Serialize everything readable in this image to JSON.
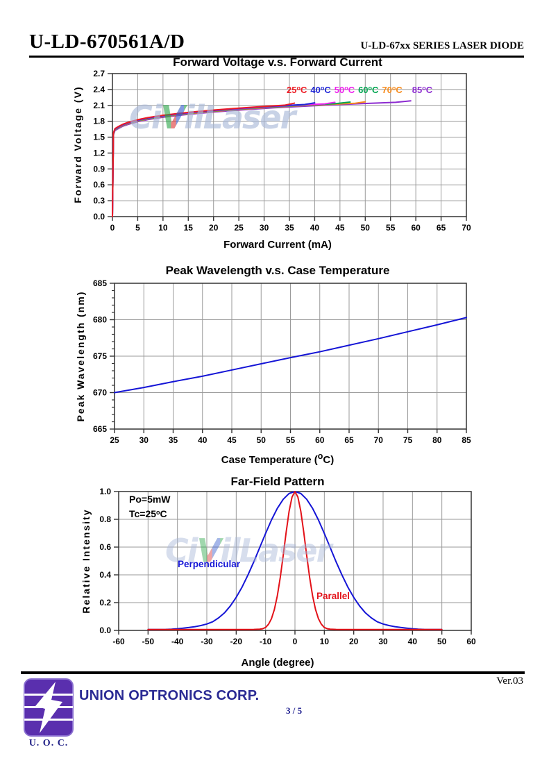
{
  "header": {
    "model": "U-LD-670561A/D",
    "series": "U-LD-67xx SERIES LASER DIODE"
  },
  "watermark": {
    "pre": "Ci",
    "v": "V",
    "post": "ilLaser"
  },
  "chart_data": [
    {
      "type": "line",
      "title": "Forward Voltage v.s. Forward Current",
      "xlabel": "Forward Current (mA)",
      "ylabel": "Forward Voltage (V)",
      "xlim": [
        0,
        70
      ],
      "ylim": [
        0,
        2.7
      ],
      "xticks": [
        "0",
        "5",
        "10",
        "15",
        "20",
        "25",
        "30",
        "35",
        "40",
        "45",
        "50",
        "55",
        "60",
        "65",
        "70"
      ],
      "yticks": [
        "0.0",
        "0.3",
        "0.6",
        "0.9",
        "1.2",
        "1.5",
        "1.8",
        "2.1",
        "2.4",
        "2.7"
      ],
      "grid": true,
      "legend_position": "inside-top",
      "legend": [
        {
          "label": "25°C",
          "color": "#ed1c24"
        },
        {
          "label": "40°C",
          "color": "#2228d8"
        },
        {
          "label": "50°C",
          "color": "#ee22ee"
        },
        {
          "label": "60°C",
          "color": "#00a550"
        },
        {
          "label": "70°C",
          "color": "#f78c1e"
        },
        {
          "label": "85°C",
          "color": "#8c2bd0"
        }
      ],
      "series": [
        {
          "name": "85C",
          "color": "#8c2bd0",
          "points": [
            [
              0,
              0
            ],
            [
              0.2,
              1.544
            ],
            [
              0.5,
              1.624
            ],
            [
              1,
              1.654
            ],
            [
              2,
              1.704
            ],
            [
              3,
              1.738
            ],
            [
              5,
              1.792
            ],
            [
              7,
              1.831
            ],
            [
              10,
              1.875
            ],
            [
              13,
              1.91
            ],
            [
              16,
              1.94
            ],
            [
              20,
              1.974
            ],
            [
              24,
              2.004
            ],
            [
              28,
              2.03
            ],
            [
              32,
              2.054
            ],
            [
              36,
              2.075
            ],
            [
              40,
              2.094
            ],
            [
              44,
              2.112
            ],
            [
              48,
              2.128
            ],
            [
              52,
              2.143
            ],
            [
              56,
              2.157
            ],
            [
              59,
              2.185
            ]
          ]
        },
        {
          "name": "70C",
          "color": "#f78c1e",
          "points": [
            [
              0,
              0
            ],
            [
              0.2,
              1.556
            ],
            [
              0.5,
              1.636
            ],
            [
              1,
              1.666
            ],
            [
              2,
              1.716
            ],
            [
              3,
              1.75
            ],
            [
              5,
              1.804
            ],
            [
              7,
              1.843
            ],
            [
              10,
              1.887
            ],
            [
              13,
              1.922
            ],
            [
              16,
              1.952
            ],
            [
              20,
              1.986
            ],
            [
              24,
              2.016
            ],
            [
              28,
              2.042
            ],
            [
              32,
              2.066
            ],
            [
              36,
              2.087
            ],
            [
              40,
              2.106
            ],
            [
              44,
              2.124
            ],
            [
              48,
              2.14
            ],
            [
              50,
              2.168
            ]
          ]
        },
        {
          "name": "60C",
          "color": "#00a550",
          "points": [
            [
              0,
              0
            ],
            [
              0.2,
              1.563
            ],
            [
              0.5,
              1.643
            ],
            [
              1,
              1.673
            ],
            [
              2,
              1.723
            ],
            [
              3,
              1.757
            ],
            [
              5,
              1.811
            ],
            [
              7,
              1.85
            ],
            [
              10,
              1.894
            ],
            [
              13,
              1.929
            ],
            [
              16,
              1.959
            ],
            [
              20,
              1.993
            ],
            [
              24,
              2.023
            ],
            [
              28,
              2.049
            ],
            [
              32,
              2.073
            ],
            [
              36,
              2.094
            ],
            [
              40,
              2.113
            ],
            [
              44,
              2.131
            ],
            [
              47,
              2.162
            ]
          ]
        },
        {
          "name": "50C",
          "color": "#ee22ee",
          "points": [
            [
              0,
              0
            ],
            [
              0.2,
              1.57
            ],
            [
              0.5,
              1.65
            ],
            [
              1,
              1.68
            ],
            [
              2,
              1.73
            ],
            [
              3,
              1.764
            ],
            [
              5,
              1.818
            ],
            [
              7,
              1.857
            ],
            [
              10,
              1.901
            ],
            [
              13,
              1.936
            ],
            [
              16,
              1.966
            ],
            [
              20,
              2.0
            ],
            [
              24,
              2.03
            ],
            [
              28,
              2.056
            ],
            [
              32,
              2.08
            ],
            [
              36,
              2.101
            ],
            [
              40,
              2.12
            ],
            [
              42,
              2.129
            ],
            [
              44,
              2.158
            ]
          ]
        },
        {
          "name": "40C",
          "color": "#2228d8",
          "points": [
            [
              0,
              0
            ],
            [
              0.2,
              1.576
            ],
            [
              0.5,
              1.656
            ],
            [
              1,
              1.686
            ],
            [
              2,
              1.736
            ],
            [
              3,
              1.77
            ],
            [
              5,
              1.824
            ],
            [
              7,
              1.863
            ],
            [
              10,
              1.907
            ],
            [
              13,
              1.942
            ],
            [
              16,
              1.972
            ],
            [
              20,
              2.006
            ],
            [
              24,
              2.036
            ],
            [
              28,
              2.062
            ],
            [
              32,
              2.086
            ],
            [
              36,
              2.107
            ],
            [
              38,
              2.117
            ],
            [
              40,
              2.148
            ]
          ]
        },
        {
          "name": "25C",
          "color": "#ed1c24",
          "points": [
            [
              0,
              0
            ],
            [
              0.2,
              1.582
            ],
            [
              0.5,
              1.662
            ],
            [
              1,
              1.692
            ],
            [
              2,
              1.742
            ],
            [
              3,
              1.776
            ],
            [
              5,
              1.83
            ],
            [
              7,
              1.869
            ],
            [
              10,
              1.913
            ],
            [
              13,
              1.948
            ],
            [
              16,
              1.978
            ],
            [
              20,
              2.012
            ],
            [
              24,
              2.042
            ],
            [
              28,
              2.068
            ],
            [
              32,
              2.092
            ],
            [
              34,
              2.103
            ],
            [
              36,
              2.142
            ]
          ]
        }
      ]
    },
    {
      "type": "line",
      "title": "Peak Wavelength v.s. Case Temperature",
      "xlabel": "Case Temperature (°C)",
      "ylabel": "Peak Wavelength (nm)",
      "xlim": [
        25,
        85
      ],
      "ylim": [
        665,
        685
      ],
      "xticks": [
        "25",
        "30",
        "35",
        "40",
        "45",
        "50",
        "55",
        "60",
        "65",
        "70",
        "75",
        "80",
        "85"
      ],
      "yticks": [
        "665",
        "670",
        "675",
        "680",
        "685"
      ],
      "y_minor_step": 1,
      "grid": true,
      "series": [
        {
          "name": "peak-wavelength",
          "color": "#1515d6",
          "points": [
            [
              25,
              670.0
            ],
            [
              30,
              670.7
            ],
            [
              35,
              671.5
            ],
            [
              40,
              672.25
            ],
            [
              45,
              673.1
            ],
            [
              50,
              673.95
            ],
            [
              55,
              674.8
            ],
            [
              60,
              675.6
            ],
            [
              65,
              676.5
            ],
            [
              70,
              677.4
            ],
            [
              75,
              678.35
            ],
            [
              80,
              679.3
            ],
            [
              85,
              680.3
            ]
          ]
        }
      ]
    },
    {
      "type": "line",
      "title": "Far-Field Pattern",
      "xlabel": "Angle (degree)",
      "ylabel": "Relative Intensity",
      "xlim": [
        -60,
        60
      ],
      "ylim": [
        0,
        1.0
      ],
      "xticks": [
        "-60",
        "-50",
        "-40",
        "-30",
        "-20",
        "-10",
        "0",
        "10",
        "20",
        "30",
        "40",
        "50",
        "60"
      ],
      "yticks": [
        "0.0",
        "0.2",
        "0.4",
        "0.6",
        "0.8",
        "1.0"
      ],
      "grid": true,
      "annotation": [
        "Po=5mW",
        "Tc=25°C"
      ],
      "series": [
        {
          "name": "perpendicular",
          "label": "Perpendicular",
          "color": "#1515d6",
          "points": [
            [
              -50,
              0.006
            ],
            [
              -46,
              0.006
            ],
            [
              -44,
              0.007
            ],
            [
              -42,
              0.009
            ],
            [
              -40,
              0.012
            ],
            [
              -38,
              0.016
            ],
            [
              -36,
              0.021
            ],
            [
              -34,
              0.027
            ],
            [
              -32,
              0.035
            ],
            [
              -30,
              0.046
            ],
            [
              -28,
              0.062
            ],
            [
              -26,
              0.09
            ],
            [
              -24,
              0.126
            ],
            [
              -22,
              0.176
            ],
            [
              -20,
              0.238
            ],
            [
              -18,
              0.312
            ],
            [
              -16,
              0.399
            ],
            [
              -14,
              0.494
            ],
            [
              -12,
              0.596
            ],
            [
              -10,
              0.698
            ],
            [
              -8,
              0.795
            ],
            [
              -6,
              0.879
            ],
            [
              -4,
              0.944
            ],
            [
              -2,
              0.986
            ],
            [
              0,
              1.0
            ],
            [
              2,
              0.986
            ],
            [
              4,
              0.944
            ],
            [
              6,
              0.879
            ],
            [
              8,
              0.795
            ],
            [
              10,
              0.698
            ],
            [
              12,
              0.596
            ],
            [
              14,
              0.494
            ],
            [
              16,
              0.399
            ],
            [
              18,
              0.312
            ],
            [
              20,
              0.238
            ],
            [
              22,
              0.176
            ],
            [
              24,
              0.126
            ],
            [
              26,
              0.09
            ],
            [
              28,
              0.062
            ],
            [
              30,
              0.046
            ],
            [
              32,
              0.035
            ],
            [
              34,
              0.027
            ],
            [
              36,
              0.021
            ],
            [
              38,
              0.016
            ],
            [
              40,
              0.012
            ],
            [
              42,
              0.009
            ],
            [
              44,
              0.007
            ],
            [
              46,
              0.006
            ],
            [
              50,
              0.006
            ]
          ]
        },
        {
          "name": "parallel",
          "label": "Parallel",
          "color": "#e31219",
          "points": [
            [
              -50,
              0.006
            ],
            [
              -16,
              0.006
            ],
            [
              -14,
              0.007
            ],
            [
              -12,
              0.009
            ],
            [
              -11,
              0.012
            ],
            [
              -10,
              0.021
            ],
            [
              -9,
              0.044
            ],
            [
              -8,
              0.084
            ],
            [
              -7,
              0.151
            ],
            [
              -6,
              0.249
            ],
            [
              -5,
              0.381
            ],
            [
              -4,
              0.539
            ],
            [
              -3,
              0.706
            ],
            [
              -2,
              0.857
            ],
            [
              -1,
              0.96
            ],
            [
              0,
              1.0
            ],
            [
              1,
              0.96
            ],
            [
              2,
              0.857
            ],
            [
              3,
              0.706
            ],
            [
              4,
              0.539
            ],
            [
              5,
              0.381
            ],
            [
              6,
              0.249
            ],
            [
              7,
              0.151
            ],
            [
              8,
              0.084
            ],
            [
              9,
              0.044
            ],
            [
              10,
              0.021
            ],
            [
              11,
              0.012
            ],
            [
              12,
              0.009
            ],
            [
              14,
              0.007
            ],
            [
              16,
              0.006
            ],
            [
              50,
              0.006
            ]
          ]
        }
      ]
    }
  ],
  "footer": {
    "version": "Ver.03",
    "company": "UNION OPTRONICS CORP.",
    "abbrev": "U. O. C.",
    "page": "3 / 5"
  }
}
